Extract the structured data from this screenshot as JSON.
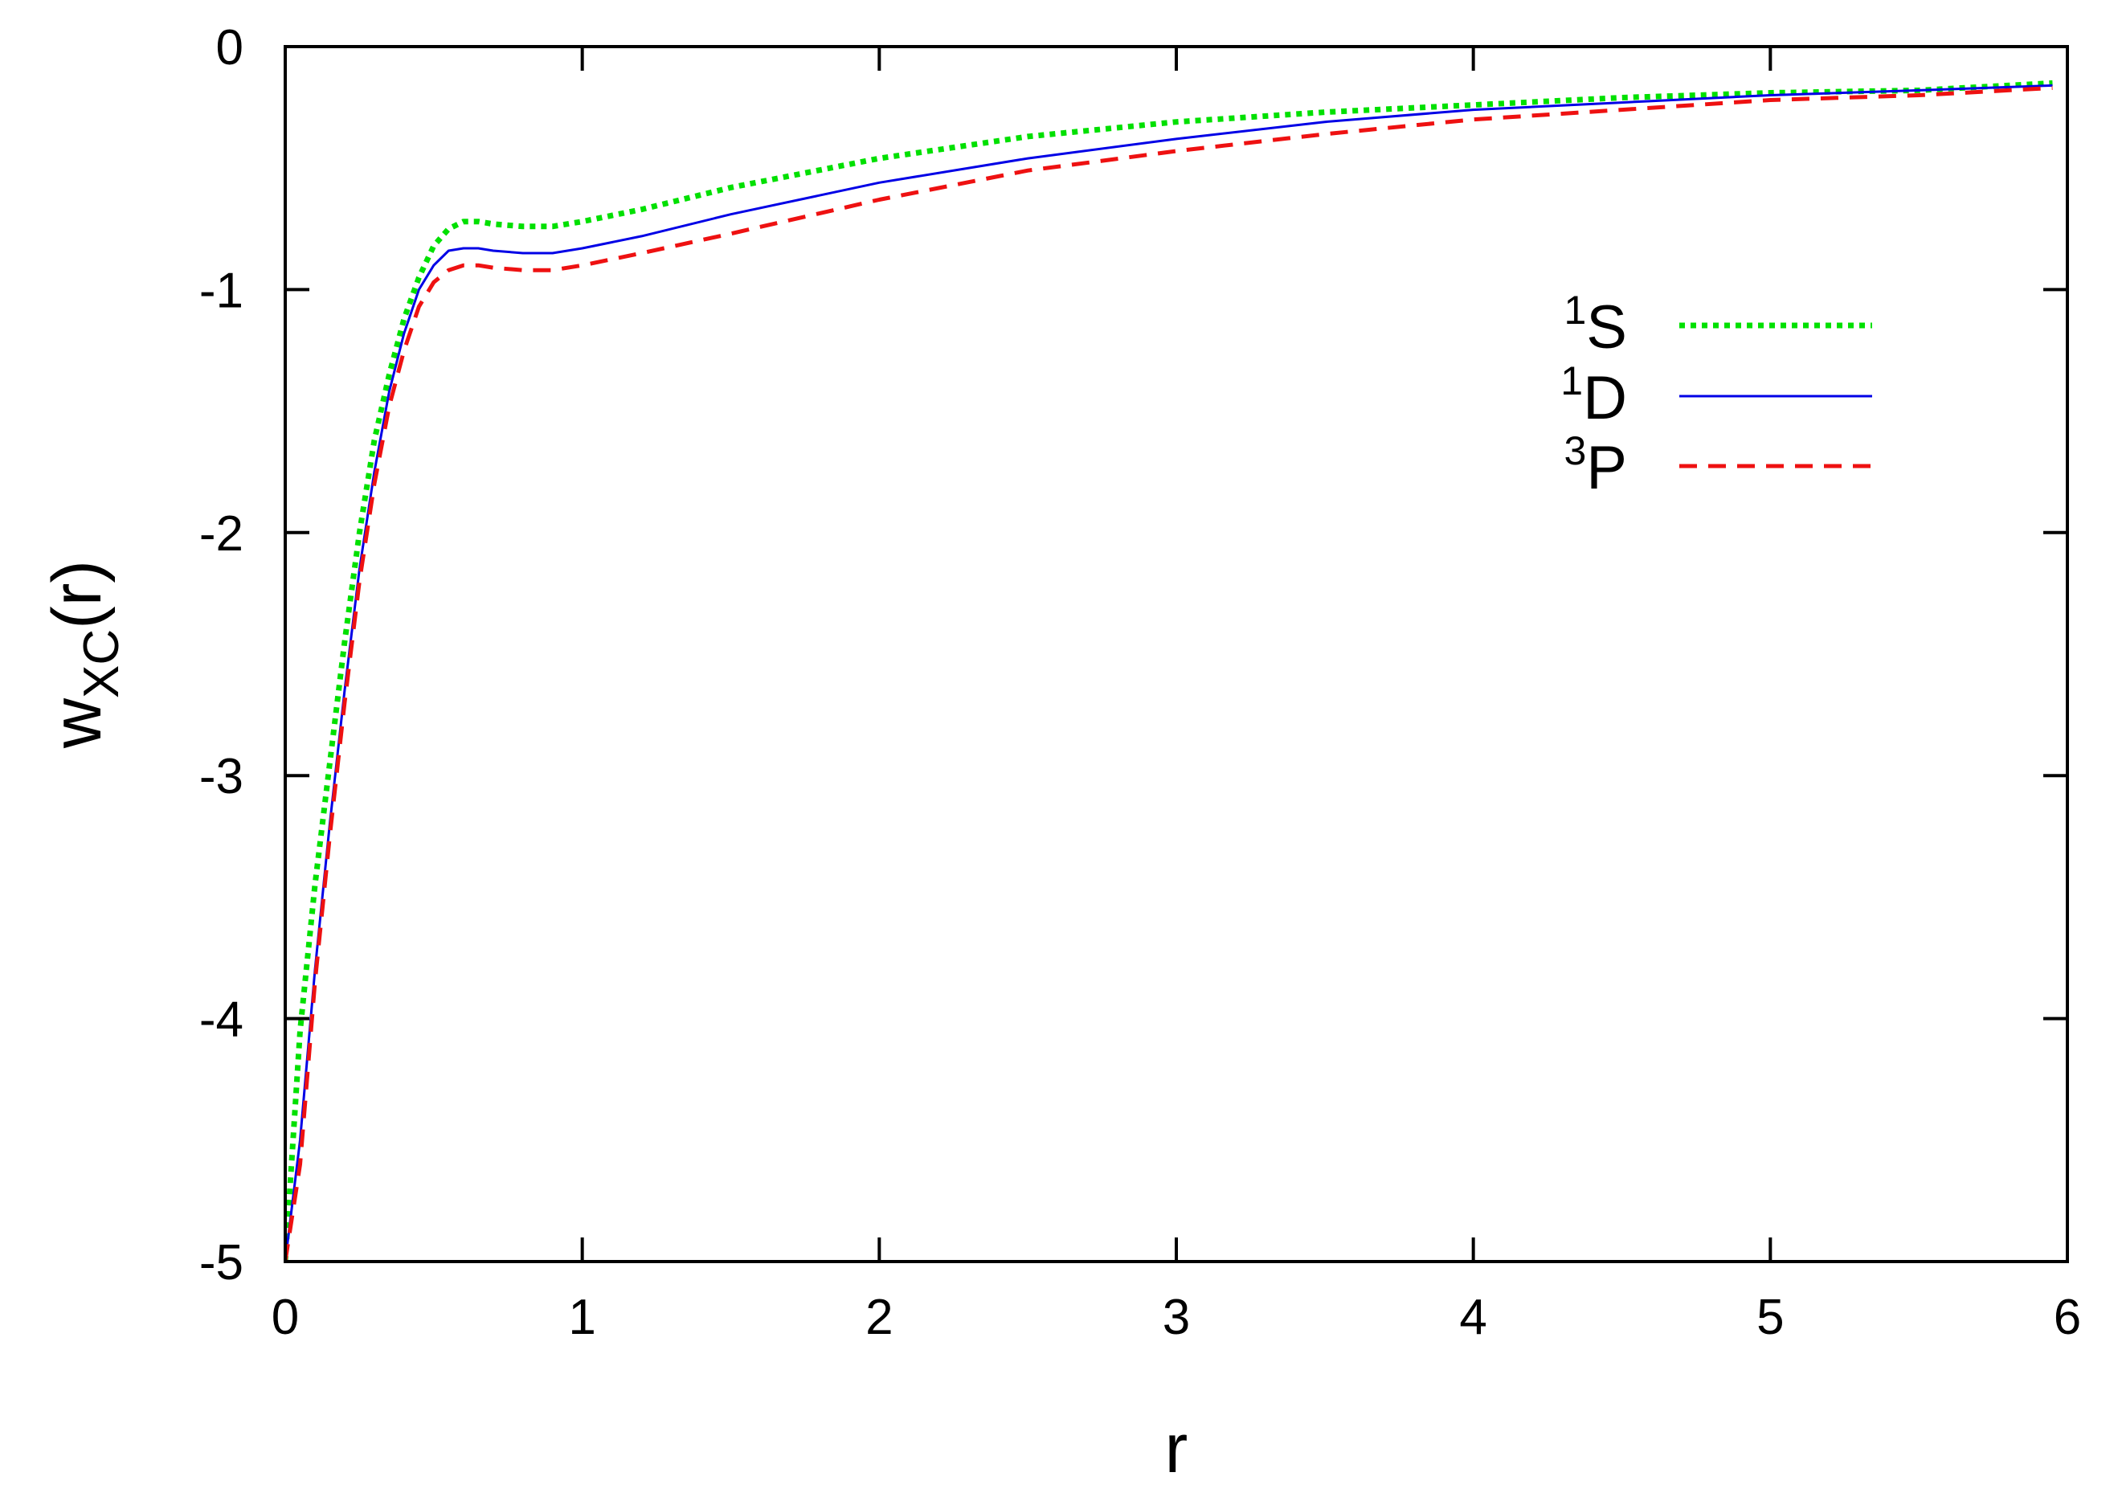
{
  "chart_data": {
    "type": "line",
    "title": "",
    "xlabel": "r",
    "ylabel": {
      "main": "w",
      "subscript": "XC",
      "suffix": "(r)"
    },
    "xlim": [
      0,
      6
    ],
    "ylim": [
      -5,
      0
    ],
    "x_ticks": [
      "0",
      "1",
      "2",
      "3",
      "4",
      "5",
      "6"
    ],
    "y_ticks": [
      "0",
      "-1",
      "-2",
      "-3",
      "-4",
      "-5"
    ],
    "grid": false,
    "legend_position": "top-right",
    "series": [
      {
        "label": {
          "sup": "1",
          "main": "S"
        },
        "color": "#00e000",
        "style": "dotted",
        "x": [
          0.0,
          0.05,
          0.1,
          0.15,
          0.2,
          0.25,
          0.3,
          0.35,
          0.4,
          0.45,
          0.5,
          0.55,
          0.6,
          0.65,
          0.7,
          0.8,
          0.9,
          1.0,
          1.2,
          1.5,
          2.0,
          2.5,
          3.0,
          3.5,
          4.0,
          4.5,
          5.0,
          5.5,
          5.95
        ],
        "y": [
          -5.0,
          -4.05,
          -3.45,
          -2.95,
          -2.45,
          -2.0,
          -1.62,
          -1.35,
          -1.12,
          -0.95,
          -0.82,
          -0.75,
          -0.72,
          -0.72,
          -0.73,
          -0.74,
          -0.74,
          -0.72,
          -0.67,
          -0.58,
          -0.46,
          -0.37,
          -0.31,
          -0.27,
          -0.24,
          -0.21,
          -0.19,
          -0.18,
          -0.15
        ]
      },
      {
        "label": {
          "sup": "1",
          "main": "D"
        },
        "color": "#0000e6",
        "style": "solid",
        "x": [
          0.0,
          0.05,
          0.1,
          0.15,
          0.2,
          0.25,
          0.3,
          0.35,
          0.4,
          0.45,
          0.5,
          0.55,
          0.6,
          0.65,
          0.7,
          0.8,
          0.9,
          1.0,
          1.2,
          1.5,
          2.0,
          2.5,
          3.0,
          3.5,
          4.0,
          4.5,
          5.0,
          5.5,
          5.95
        ],
        "y": [
          -5.0,
          -4.5,
          -3.8,
          -3.2,
          -2.65,
          -2.15,
          -1.75,
          -1.42,
          -1.18,
          -1.0,
          -0.9,
          -0.84,
          -0.83,
          -0.83,
          -0.84,
          -0.85,
          -0.85,
          -0.83,
          -0.78,
          -0.69,
          -0.56,
          -0.46,
          -0.38,
          -0.31,
          -0.26,
          -0.23,
          -0.2,
          -0.18,
          -0.16
        ]
      },
      {
        "label": {
          "sup": "3",
          "main": "P"
        },
        "color": "#ee1111",
        "style": "dashed",
        "x": [
          0.0,
          0.05,
          0.1,
          0.15,
          0.2,
          0.25,
          0.3,
          0.35,
          0.4,
          0.45,
          0.5,
          0.55,
          0.6,
          0.65,
          0.7,
          0.8,
          0.9,
          1.0,
          1.2,
          1.5,
          2.0,
          2.5,
          3.0,
          3.5,
          4.0,
          4.5,
          5.0,
          5.5,
          5.95
        ],
        "y": [
          -5.0,
          -4.6,
          -3.85,
          -3.25,
          -2.7,
          -2.2,
          -1.8,
          -1.48,
          -1.25,
          -1.07,
          -0.97,
          -0.92,
          -0.9,
          -0.9,
          -0.91,
          -0.92,
          -0.92,
          -0.9,
          -0.85,
          -0.77,
          -0.63,
          -0.51,
          -0.43,
          -0.36,
          -0.3,
          -0.26,
          -0.22,
          -0.2,
          -0.17
        ]
      }
    ]
  }
}
